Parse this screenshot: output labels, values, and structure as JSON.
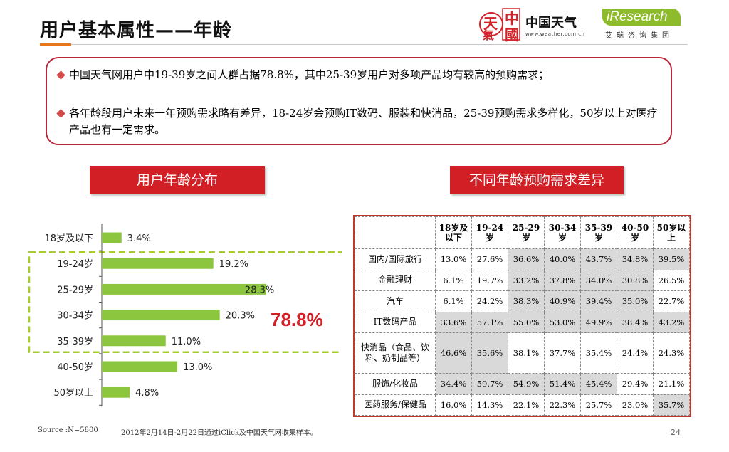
{
  "header": {
    "title": "用户基本属性——年龄",
    "weather_logo_seal": [
      "天",
      "中",
      "氣",
      "國"
    ],
    "weather_logo_name": "中国天气",
    "weather_logo_url": "www.weather.com.cn",
    "iresearch_logo": "iResearch",
    "iresearch_sub": "艾瑞咨询集团"
  },
  "summary": {
    "bullets": [
      "中国天气网用户中19-39岁之间人群占据78.8%，其中25-39岁用户对多项产品均有较高的预购需求；",
      "各年龄段用户未来一年预购需求略有差异，18-24岁会预购IT数码、服装和快消品，25-39预购需求多样化，50岁以上对医疗产品也有一定需求。"
    ]
  },
  "left_section_label": "用户年龄分布",
  "right_section_label": "不同年龄预购需求差异",
  "chart_data": {
    "type": "bar",
    "orientation": "horizontal",
    "categories": [
      "18岁及以下",
      "19-24岁",
      "25-29岁",
      "30-34岁",
      "35-39岁",
      "40-50岁",
      "50岁以上"
    ],
    "values": [
      3.4,
      19.2,
      28.3,
      20.3,
      11.0,
      13.0,
      4.8
    ],
    "value_labels": [
      "3.4%",
      "19.2%",
      "28.3%",
      "20.3%",
      "11.0%",
      "13.0%",
      "4.8%"
    ],
    "bar_color": "#8cc63f",
    "highlight_range": [
      "19-24岁",
      "35-39岁"
    ],
    "highlight_total": "78.8%",
    "highlight_color": "#a6cc30"
  },
  "table": {
    "columns": [
      "18岁及以下",
      "19-24岁",
      "25-29岁",
      "30-34岁",
      "35-39岁",
      "40-50岁",
      "50岁以上"
    ],
    "rows": [
      {
        "label": "国内/国际旅行",
        "values": [
          "13.0%",
          "27.6%",
          "36.6%",
          "40.0%",
          "43.7%",
          "34.8%",
          "39.5%"
        ],
        "highlight": [
          false,
          false,
          true,
          true,
          true,
          true,
          true
        ]
      },
      {
        "label": "金融理财",
        "values": [
          "6.1%",
          "19.7%",
          "33.2%",
          "37.8%",
          "34.0%",
          "30.8%",
          "26.5%"
        ],
        "highlight": [
          false,
          false,
          true,
          true,
          true,
          true,
          false
        ]
      },
      {
        "label": "汽车",
        "values": [
          "6.1%",
          "24.2%",
          "38.3%",
          "40.9%",
          "39.4%",
          "35.0%",
          "22.7%"
        ],
        "highlight": [
          false,
          false,
          true,
          true,
          true,
          true,
          false
        ]
      },
      {
        "label": "IT数码产品",
        "values": [
          "33.6%",
          "57.1%",
          "55.0%",
          "53.0%",
          "49.9%",
          "38.4%",
          "43.2%"
        ],
        "highlight": [
          true,
          true,
          true,
          true,
          true,
          true,
          true
        ]
      },
      {
        "label": "快消品（食品、饮料、奶制品等）",
        "values": [
          "46.6%",
          "35.6%",
          "38.1%",
          "37.7%",
          "35.4%",
          "24.4%",
          "24.3%"
        ],
        "highlight": [
          true,
          true,
          false,
          false,
          false,
          false,
          false
        ]
      },
      {
        "label": "服饰/化妆品",
        "values": [
          "34.4%",
          "59.7%",
          "54.9%",
          "51.4%",
          "45.4%",
          "29.4%",
          "21.1%"
        ],
        "highlight": [
          true,
          true,
          true,
          true,
          true,
          false,
          false
        ]
      },
      {
        "label": "医药服务/保健品",
        "values": [
          "16.0%",
          "14.3%",
          "22.1%",
          "22.3%",
          "25.7%",
          "23.0%",
          "35.7%"
        ],
        "highlight": [
          false,
          false,
          false,
          false,
          false,
          false,
          true
        ]
      }
    ]
  },
  "footer": {
    "source": "Source :N=5800",
    "source_detail": "2012年2月14日-2月22日通过iClick及中国天气网收集样本。",
    "page_number": "24"
  }
}
